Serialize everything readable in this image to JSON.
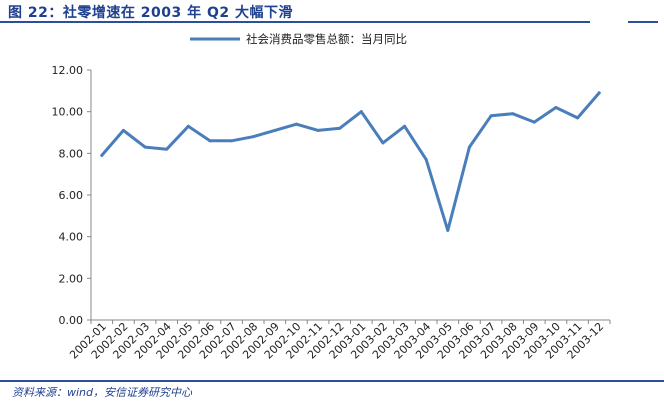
{
  "figure": {
    "title": "图 22：社零增速在 2003 年 Q2 大幅下滑",
    "source": "资料来源：wind，安信证券研究中心"
  },
  "colors": {
    "accent": "#2b4f9e",
    "series": "#4a7ebb"
  },
  "chart_data": {
    "type": "line",
    "categories": [
      "2002-01",
      "2002-02",
      "2002-03",
      "2002-04",
      "2002-05",
      "2002-06",
      "2002-07",
      "2002-08",
      "2002-09",
      "2002-10",
      "2002-11",
      "2002-12",
      "2003-01",
      "2003-02",
      "2003-03",
      "2003-04",
      "2003-05",
      "2003-06",
      "2003-07",
      "2003-08",
      "2003-09",
      "2003-10",
      "2003-11",
      "2003-12"
    ],
    "series": [
      {
        "name": "社会消费品零售总额：当月同比",
        "values": [
          7.9,
          9.1,
          8.3,
          8.2,
          9.3,
          8.6,
          8.6,
          8.8,
          9.1,
          9.4,
          9.1,
          9.2,
          10.0,
          8.5,
          9.3,
          7.7,
          4.3,
          8.3,
          9.8,
          9.9,
          9.5,
          10.2,
          9.7,
          10.9
        ]
      }
    ],
    "ylim": [
      0,
      12
    ],
    "yticks": [
      "0.00",
      "2.00",
      "4.00",
      "6.00",
      "8.00",
      "10.00",
      "12.00"
    ],
    "grid": false,
    "legend": "top-center",
    "title": "",
    "xlabel": "",
    "ylabel": ""
  }
}
